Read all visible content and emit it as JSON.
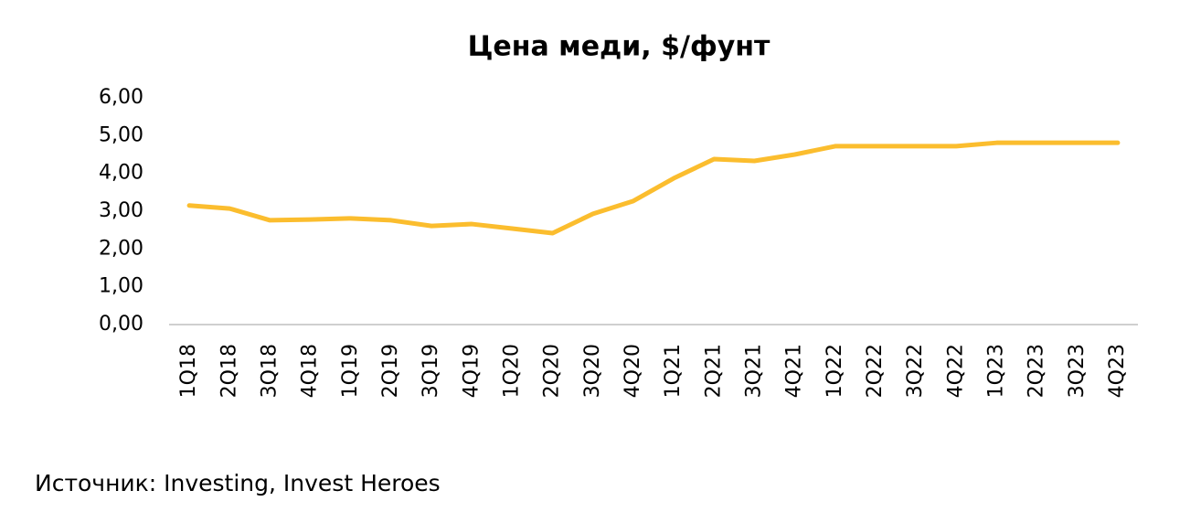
{
  "chart_data": {
    "type": "line",
    "title": "Цена меди, $/фунт",
    "categories": [
      "1Q18",
      "2Q18",
      "3Q18",
      "4Q18",
      "1Q19",
      "2Q19",
      "3Q19",
      "4Q19",
      "1Q20",
      "2Q20",
      "3Q20",
      "4Q20",
      "1Q21",
      "2Q21",
      "3Q21",
      "4Q21",
      "1Q22",
      "2Q22",
      "3Q22",
      "4Q22",
      "1Q23",
      "2Q23",
      "3Q23",
      "4Q23"
    ],
    "series": [
      {
        "color": "#fbbd2e",
        "values": [
          3.15,
          3.07,
          2.76,
          2.78,
          2.81,
          2.76,
          2.61,
          2.66,
          2.54,
          2.42,
          2.93,
          3.27,
          3.87,
          4.38,
          4.33,
          4.5,
          4.72,
          4.72,
          4.72,
          4.72,
          4.81,
          4.81,
          4.81,
          4.81
        ]
      }
    ],
    "ylim": [
      0,
      6
    ],
    "yticks": [
      {
        "value": 0,
        "label": "0,00"
      },
      {
        "value": 1,
        "label": "1,00"
      },
      {
        "value": 2,
        "label": "2,00"
      },
      {
        "value": 3,
        "label": "3,00"
      },
      {
        "value": 4,
        "label": "4,00"
      },
      {
        "value": 5,
        "label": "5,00"
      },
      {
        "value": 6,
        "label": "6,00"
      }
    ],
    "grid": false,
    "note": "Источник: Investing, Invest Heroes"
  }
}
